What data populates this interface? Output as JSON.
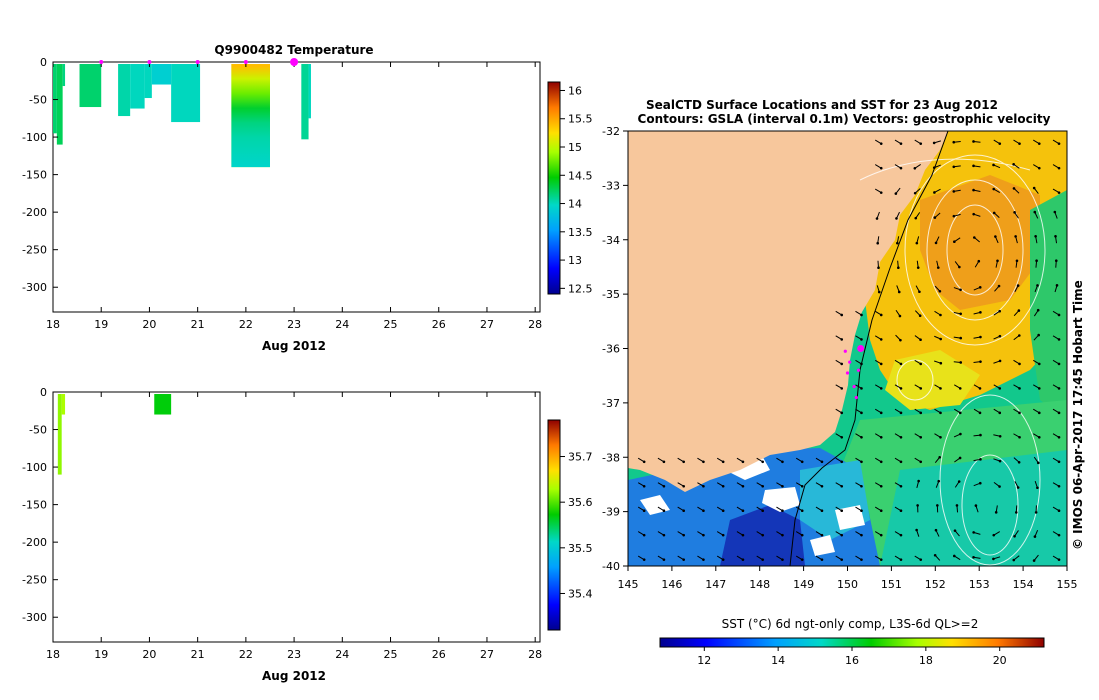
{
  "chart_data": [
    {
      "type": "heatmap",
      "title": "Q9900482  Temperature",
      "xlabel": "Aug 2012",
      "x_ticks": [
        "18",
        "19",
        "20",
        "21",
        "22",
        "23",
        "24",
        "25",
        "26",
        "27",
        "28"
      ],
      "y_ticks": [
        "0",
        "-50",
        "-100",
        "-150",
        "-200",
        "-250",
        "-300"
      ],
      "xlim": [
        18,
        28.1
      ],
      "ylim": [
        -333,
        0
      ],
      "colorbar_ticks": [
        "16",
        "15.5",
        "15",
        "14.5",
        "14",
        "13.5",
        "13",
        "12.5"
      ],
      "colorbar_range": [
        12.4,
        16.15
      ],
      "profiles": [
        {
          "x0": 18.0,
          "x1": 18.08,
          "depth": -95,
          "value": 14.2
        },
        {
          "x0": 18.08,
          "x1": 18.2,
          "depth": -110,
          "value": 14.25
        },
        {
          "x0": 18.2,
          "x1": 18.25,
          "depth": -32,
          "value": 14.15
        },
        {
          "x0": 18.55,
          "x1": 19.0,
          "depth": -60,
          "value": 14.2
        },
        {
          "x0": 19.35,
          "x1": 19.6,
          "depth": -72,
          "value": 14.05
        },
        {
          "x0": 19.6,
          "x1": 19.9,
          "depth": -62,
          "value": 14.0
        },
        {
          "x0": 19.9,
          "x1": 20.05,
          "depth": -48,
          "value": 14.0
        },
        {
          "x0": 20.05,
          "x1": 20.45,
          "depth": -30,
          "value": 13.9
        },
        {
          "x0": 20.45,
          "x1": 21.05,
          "depth": -80,
          "value": 14.0
        },
        {
          "x0": 21.7,
          "x1": 22.5,
          "depth": -140,
          "value": 14.8
        },
        {
          "x0": 23.15,
          "x1": 23.3,
          "depth": -103,
          "value": 14.1
        },
        {
          "x0": 23.3,
          "x1": 23.35,
          "depth": -75,
          "value": 14.0
        }
      ],
      "surface_markers": [
        19.0,
        20.0,
        21.0,
        22.0,
        23.0
      ],
      "highlight_marker": 23.0,
      "gradient_profile": {
        "x0": 21.7,
        "x1": 22.5,
        "stops": [
          {
            "depth": -3,
            "value": 15.4
          },
          {
            "depth": -20,
            "value": 15.05
          },
          {
            "depth": -40,
            "value": 14.75
          },
          {
            "depth": -60,
            "value": 14.35
          },
          {
            "depth": -80,
            "value": 14.15
          },
          {
            "depth": -100,
            "value": 14.05
          },
          {
            "depth": -140,
            "value": 13.95
          }
        ]
      }
    },
    {
      "type": "heatmap",
      "title": "",
      "xlabel": "Aug 2012",
      "x_ticks": [
        "18",
        "19",
        "20",
        "21",
        "22",
        "23",
        "24",
        "25",
        "26",
        "27",
        "28"
      ],
      "y_ticks": [
        "0",
        "-50",
        "-100",
        "-150",
        "-200",
        "-250",
        "-300"
      ],
      "xlim": [
        18,
        28.1
      ],
      "ylim": [
        -333,
        0
      ],
      "colorbar_ticks": [
        "35.7",
        "35.6",
        "35.5",
        "35.4"
      ],
      "colorbar_range": [
        35.32,
        35.78
      ],
      "profiles": [
        {
          "x0": 18.1,
          "x1": 18.18,
          "depth": -110,
          "value": 35.62
        },
        {
          "x0": 18.18,
          "x1": 18.25,
          "depth": -30,
          "value": 35.63
        },
        {
          "x0": 20.1,
          "x1": 20.45,
          "depth": -30,
          "value": 35.57
        }
      ]
    },
    {
      "type": "heatmap",
      "title": "SealCTD Surface Locations and SST for 23 Aug 2012",
      "subtitle": "Contours: GSLA (interval 0.1m) Vectors: geostrophic velocity",
      "xlim": [
        145,
        155
      ],
      "ylim": [
        -40,
        -32
      ],
      "x_ticks": [
        "145",
        "146",
        "147",
        "148",
        "149",
        "150",
        "151",
        "152",
        "153",
        "154",
        "155"
      ],
      "y_ticks": [
        "-32",
        "-33",
        "-34",
        "-35",
        "-36",
        "-37",
        "-38",
        "-39",
        "-40"
      ],
      "colorbar_label": "SST (°C) 6d ngt-only comp, L3S-6d QL>=2",
      "colorbar_ticks": [
        "12",
        "14",
        "16",
        "18",
        "20"
      ],
      "colorbar_range": [
        10.8,
        21.2
      ],
      "seal_track": [
        {
          "lon": 149.95,
          "lat": -36.05
        },
        {
          "lon": 150.05,
          "lat": -36.25
        },
        {
          "lon": 150.0,
          "lat": -36.45
        },
        {
          "lon": 150.15,
          "lat": -36.7
        },
        {
          "lon": 150.2,
          "lat": -36.9
        },
        {
          "lon": 150.25,
          "lat": -36.4
        }
      ],
      "seal_latest": {
        "lon": 150.3,
        "lat": -36.0
      }
    }
  ],
  "credit": "© IMOS 06-Apr-2017 17:45 Hobart Time",
  "colors": {
    "land": "#f7c79c",
    "marker": "#ff00ff"
  }
}
